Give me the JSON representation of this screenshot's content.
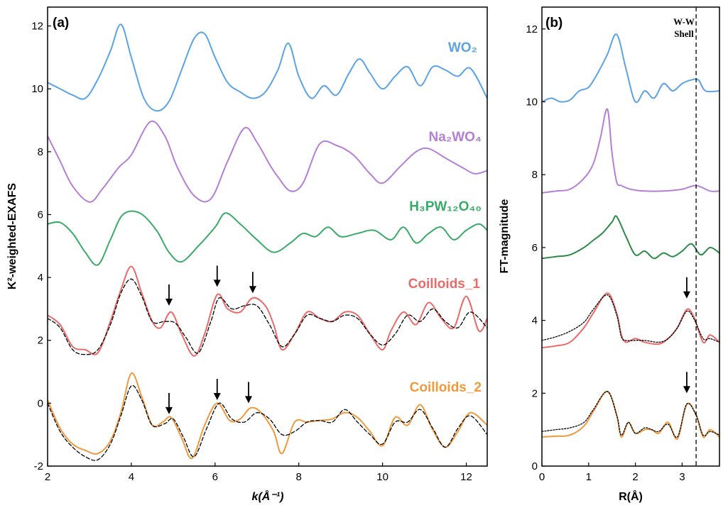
{
  "chart_data": [
    {
      "type": "line",
      "panel": "(a)",
      "xlabel": "k(Å⁻¹)",
      "ylabel": "K²-weighted-EXAFS",
      "xlim": [
        2,
        12.5
      ],
      "ylim": [
        -2,
        12.6
      ],
      "xticks": [
        2,
        4,
        6,
        8,
        10,
        12
      ],
      "yticks": [
        -2,
        0,
        2,
        4,
        6,
        8,
        10,
        12
      ],
      "series": [
        {
          "name": "WO₂",
          "color": "#5ba3e6",
          "style": "solid",
          "x": [
            2.0,
            2.3,
            2.6,
            2.9,
            3.2,
            3.5,
            3.75,
            4.0,
            4.3,
            4.6,
            4.9,
            5.2,
            5.5,
            5.75,
            6.0,
            6.3,
            6.6,
            6.9,
            7.2,
            7.5,
            7.75,
            8.0,
            8.3,
            8.6,
            8.9,
            9.2,
            9.45,
            9.7,
            10.0,
            10.3,
            10.6,
            10.9,
            11.2,
            11.5,
            11.8,
            12.1,
            12.5
          ],
          "y": [
            10.2,
            10.0,
            9.8,
            9.7,
            10.3,
            11.2,
            12.05,
            11.0,
            9.7,
            9.3,
            9.6,
            10.6,
            11.6,
            11.75,
            11.0,
            10.2,
            9.9,
            9.7,
            9.9,
            10.6,
            11.45,
            10.4,
            9.7,
            10.1,
            9.8,
            10.5,
            10.95,
            10.5,
            10.0,
            10.4,
            10.7,
            10.1,
            10.7,
            10.6,
            10.4,
            10.65,
            9.7
          ]
        },
        {
          "name": "Na₂WO₄",
          "color": "#b57fd6",
          "style": "solid",
          "x": [
            2.0,
            2.3,
            2.6,
            3.0,
            3.3,
            3.7,
            4.0,
            4.45,
            4.8,
            5.1,
            5.5,
            5.9,
            6.3,
            6.7,
            7.0,
            7.3,
            7.5,
            7.8,
            8.1,
            8.5,
            8.9,
            9.3,
            9.7,
            10.0,
            10.4,
            10.8,
            11.1,
            11.5,
            11.9,
            12.2,
            12.5
          ],
          "y": [
            8.5,
            7.7,
            6.9,
            6.4,
            6.8,
            7.5,
            7.9,
            8.95,
            8.5,
            7.5,
            6.6,
            6.5,
            7.7,
            8.75,
            8.3,
            7.6,
            7.2,
            6.75,
            7.0,
            8.25,
            8.2,
            7.9,
            7.3,
            7.0,
            7.5,
            8.0,
            8.1,
            7.8,
            7.5,
            7.3,
            7.4
          ]
        },
        {
          "name": "H₃PW₁₂O₄₀",
          "color": "#3aaa68",
          "style": "solid",
          "x": [
            2.0,
            2.3,
            2.6,
            2.9,
            3.2,
            3.5,
            3.8,
            4.2,
            4.6,
            4.9,
            5.2,
            5.6,
            6.0,
            6.25,
            6.6,
            7.0,
            7.4,
            7.8,
            8.1,
            8.4,
            8.7,
            9.0,
            9.4,
            9.8,
            10.2,
            10.5,
            10.8,
            11.1,
            11.4,
            11.7,
            12.0,
            12.3,
            12.5
          ],
          "y": [
            5.7,
            5.75,
            5.4,
            4.8,
            4.4,
            5.2,
            6.0,
            6.05,
            5.5,
            4.8,
            4.5,
            5.0,
            5.6,
            6.05,
            5.7,
            5.2,
            4.8,
            5.1,
            5.4,
            5.3,
            5.6,
            5.3,
            5.4,
            5.5,
            5.2,
            5.6,
            5.1,
            5.4,
            5.6,
            5.2,
            5.5,
            5.7,
            5.5
          ]
        },
        {
          "name": "Coilloids_1",
          "color": "#ea6a6a",
          "style": "solid",
          "x": [
            2.0,
            2.3,
            2.6,
            2.9,
            3.2,
            3.5,
            3.75,
            4.0,
            4.25,
            4.5,
            4.7,
            4.95,
            5.2,
            5.5,
            5.75,
            6.05,
            6.3,
            6.6,
            6.9,
            7.2,
            7.4,
            7.6,
            7.9,
            8.2,
            8.5,
            8.8,
            9.1,
            9.4,
            9.7,
            10.0,
            10.2,
            10.5,
            10.8,
            11.1,
            11.4,
            11.7,
            12.0,
            12.3,
            12.5
          ],
          "y": [
            2.8,
            2.5,
            1.8,
            1.7,
            1.6,
            2.6,
            3.6,
            4.35,
            3.5,
            2.6,
            2.4,
            2.9,
            2.2,
            1.5,
            2.2,
            3.45,
            3.0,
            2.9,
            3.35,
            3.1,
            2.5,
            1.7,
            2.2,
            2.9,
            2.7,
            2.6,
            2.9,
            2.8,
            2.2,
            1.7,
            2.3,
            2.9,
            2.5,
            3.2,
            2.7,
            2.4,
            3.4,
            2.3,
            2.7
          ]
        },
        {
          "name": "Coilloids_1 fit",
          "color": "#000000",
          "style": "dashed",
          "x": [
            2.0,
            2.3,
            2.6,
            2.9,
            3.2,
            3.5,
            3.75,
            4.0,
            4.25,
            4.5,
            4.8,
            5.05,
            5.3,
            5.6,
            5.9,
            6.1,
            6.4,
            6.7,
            7.0,
            7.3,
            7.6,
            7.9,
            8.2,
            8.5,
            8.8,
            9.1,
            9.4,
            9.7,
            10.0,
            10.3,
            10.6,
            10.9,
            11.2,
            11.5,
            11.8,
            12.1,
            12.5
          ],
          "y": [
            2.7,
            2.4,
            1.7,
            1.55,
            1.7,
            2.5,
            3.5,
            3.95,
            3.4,
            2.6,
            2.6,
            2.55,
            2.1,
            1.6,
            2.6,
            3.35,
            3.0,
            3.1,
            3.1,
            2.5,
            1.8,
            2.2,
            2.8,
            2.7,
            2.6,
            2.8,
            2.7,
            2.2,
            1.85,
            2.2,
            2.8,
            2.6,
            3.0,
            2.6,
            2.4,
            2.9,
            2.4
          ]
        },
        {
          "name": "Coilloids_2",
          "color": "#f09a3e",
          "style": "solid",
          "x": [
            2.0,
            2.3,
            2.6,
            2.9,
            3.2,
            3.5,
            3.75,
            4.0,
            4.25,
            4.5,
            4.75,
            4.95,
            5.2,
            5.45,
            5.75,
            6.05,
            6.35,
            6.6,
            6.85,
            7.1,
            7.4,
            7.6,
            7.9,
            8.2,
            8.5,
            8.8,
            9.1,
            9.4,
            9.7,
            10.0,
            10.3,
            10.6,
            10.9,
            11.2,
            11.5,
            11.8,
            12.1,
            12.5
          ],
          "y": [
            0.1,
            -0.8,
            -1.3,
            -1.5,
            -1.6,
            -1.2,
            -0.3,
            0.95,
            0.2,
            -0.7,
            -0.6,
            -0.45,
            -1.1,
            -1.75,
            -0.7,
            0.0,
            -0.55,
            -0.5,
            -0.15,
            -0.3,
            -0.9,
            -1.6,
            -0.6,
            -0.6,
            -0.55,
            -0.5,
            -0.3,
            -0.45,
            -0.9,
            -1.35,
            -0.45,
            -0.7,
            -0.05,
            -0.85,
            -1.4,
            -0.9,
            -0.3,
            -0.7
          ]
        },
        {
          "name": "Coilloids_2 fit",
          "color": "#000000",
          "style": "dashed",
          "x": [
            2.0,
            2.3,
            2.6,
            2.9,
            3.2,
            3.5,
            3.75,
            4.0,
            4.25,
            4.5,
            4.8,
            5.0,
            5.25,
            5.5,
            5.8,
            6.1,
            6.4,
            6.7,
            7.0,
            7.3,
            7.6,
            7.9,
            8.2,
            8.5,
            8.8,
            9.1,
            9.4,
            9.7,
            10.0,
            10.3,
            10.6,
            10.9,
            11.2,
            11.5,
            11.8,
            12.1,
            12.5
          ],
          "y": [
            0.0,
            -0.9,
            -1.4,
            -1.7,
            -1.8,
            -1.3,
            -0.4,
            0.55,
            0.1,
            -0.7,
            -0.65,
            -0.5,
            -1.1,
            -1.7,
            -0.8,
            0.0,
            -0.5,
            -0.6,
            -0.3,
            -0.5,
            -1.0,
            -0.9,
            -0.6,
            -0.55,
            -0.6,
            -0.2,
            -0.6,
            -1.0,
            -1.3,
            -0.6,
            -0.6,
            -0.2,
            -0.8,
            -1.4,
            -0.8,
            -0.4,
            -1.0
          ]
        }
      ],
      "annotations": [
        {
          "type": "arrow",
          "x": 4.9,
          "y": 3.1
        },
        {
          "type": "arrow",
          "x": 6.05,
          "y": 3.7
        },
        {
          "type": "arrow",
          "x": 6.9,
          "y": 3.5
        },
        {
          "type": "arrow",
          "x": 4.9,
          "y": -0.35
        },
        {
          "type": "arrow",
          "x": 6.05,
          "y": 0.1
        },
        {
          "type": "arrow",
          "x": 6.8,
          "y": 0.0
        }
      ]
    },
    {
      "type": "line",
      "panel": "(b)",
      "xlabel": "R(Å)",
      "ylabel": "FT-magnitude",
      "xlim": [
        0,
        3.8
      ],
      "ylim": [
        0,
        12.6
      ],
      "xticks": [
        0,
        1,
        2,
        3
      ],
      "yticks": [
        0,
        2,
        4,
        6,
        8,
        10,
        12
      ],
      "vline": 3.3,
      "vline_label": [
        "W-W",
        "Shell"
      ],
      "series": [
        {
          "name": "WO₂",
          "color": "#5ba3e6",
          "style": "solid",
          "x": [
            0.0,
            0.2,
            0.4,
            0.6,
            0.8,
            1.0,
            1.2,
            1.4,
            1.6,
            1.8,
            2.0,
            2.2,
            2.4,
            2.6,
            2.8,
            3.0,
            3.2,
            3.35,
            3.5,
            3.8
          ],
          "y": [
            10.0,
            10.1,
            10.0,
            10.05,
            10.3,
            10.4,
            10.8,
            11.3,
            11.85,
            10.9,
            10.0,
            10.3,
            10.1,
            10.5,
            10.3,
            10.5,
            10.6,
            10.6,
            10.3,
            10.3
          ]
        },
        {
          "name": "Na₂WO₄",
          "color": "#b57fd6",
          "style": "solid",
          "x": [
            0.0,
            0.3,
            0.6,
            0.9,
            1.1,
            1.25,
            1.4,
            1.5,
            1.6,
            1.7,
            1.9,
            2.2,
            2.6,
            3.0,
            3.3,
            3.6,
            3.8
          ],
          "y": [
            7.5,
            7.55,
            7.6,
            7.9,
            8.3,
            9.0,
            9.8,
            8.6,
            7.8,
            7.7,
            7.6,
            7.55,
            7.55,
            7.6,
            7.7,
            7.55,
            7.55
          ]
        },
        {
          "name": "H₃PW₁₂O₄₀",
          "color": "#2d8a4a",
          "style": "solid",
          "x": [
            0.0,
            0.3,
            0.6,
            0.9,
            1.1,
            1.3,
            1.5,
            1.6,
            1.8,
            2.0,
            2.2,
            2.4,
            2.6,
            2.8,
            3.0,
            3.2,
            3.4,
            3.6,
            3.8
          ],
          "y": [
            5.7,
            5.75,
            5.8,
            6.0,
            6.2,
            6.4,
            6.7,
            6.85,
            6.3,
            5.8,
            5.9,
            5.7,
            5.85,
            5.75,
            5.9,
            6.1,
            5.8,
            6.0,
            5.85
          ]
        },
        {
          "name": "Coilloids_1",
          "color": "#ea6a6a",
          "style": "solid",
          "x": [
            0.0,
            0.3,
            0.6,
            0.9,
            1.1,
            1.4,
            1.6,
            1.7,
            1.8,
            2.0,
            2.2,
            2.5,
            2.7,
            2.9,
            3.1,
            3.25,
            3.45,
            3.6,
            3.8
          ],
          "y": [
            3.25,
            3.3,
            3.4,
            3.8,
            4.2,
            4.75,
            4.2,
            3.6,
            3.4,
            3.5,
            3.4,
            3.35,
            3.5,
            3.8,
            4.3,
            4.1,
            3.4,
            3.6,
            3.4
          ]
        },
        {
          "name": "Coilloids_1 fit",
          "color": "#000000",
          "style": "dotted",
          "x": [
            0.0,
            0.3,
            0.6,
            0.9,
            1.1,
            1.4,
            1.6,
            1.7,
            1.8,
            2.0,
            2.2,
            2.5,
            2.7,
            2.9,
            3.1,
            3.25,
            3.45,
            3.6,
            3.8
          ],
          "y": [
            3.45,
            3.55,
            3.7,
            3.95,
            4.3,
            4.7,
            4.15,
            3.55,
            3.45,
            3.45,
            3.45,
            3.4,
            3.5,
            3.8,
            4.25,
            4.05,
            3.5,
            3.5,
            3.4
          ]
        },
        {
          "name": "Coilloids_2",
          "color": "#f09a3e",
          "style": "solid",
          "x": [
            0.0,
            0.3,
            0.6,
            0.9,
            1.1,
            1.4,
            1.6,
            1.7,
            1.85,
            2.0,
            2.2,
            2.35,
            2.5,
            2.7,
            2.9,
            3.1,
            3.3,
            3.45,
            3.6,
            3.8
          ],
          "y": [
            0.8,
            0.82,
            0.85,
            1.1,
            1.5,
            2.05,
            1.4,
            0.8,
            1.2,
            0.9,
            1.0,
            1.0,
            0.9,
            1.2,
            0.75,
            1.7,
            1.4,
            0.8,
            1.0,
            0.8
          ]
        },
        {
          "name": "Coilloids_2 fit",
          "color": "#000000",
          "style": "dotted",
          "x": [
            0.0,
            0.3,
            0.6,
            0.9,
            1.1,
            1.4,
            1.6,
            1.7,
            1.85,
            2.0,
            2.2,
            2.35,
            2.5,
            2.7,
            2.9,
            3.1,
            3.3,
            3.45,
            3.6,
            3.8
          ],
          "y": [
            0.95,
            1.0,
            1.05,
            1.2,
            1.55,
            2.05,
            1.4,
            0.85,
            1.2,
            0.9,
            1.05,
            1.0,
            0.95,
            1.15,
            0.8,
            1.7,
            1.4,
            0.85,
            0.95,
            0.85
          ]
        }
      ],
      "annotations": [
        {
          "type": "arrow",
          "x": 3.1,
          "y": 4.6
        },
        {
          "type": "arrow",
          "x": 3.1,
          "y": 2.0
        }
      ]
    }
  ]
}
